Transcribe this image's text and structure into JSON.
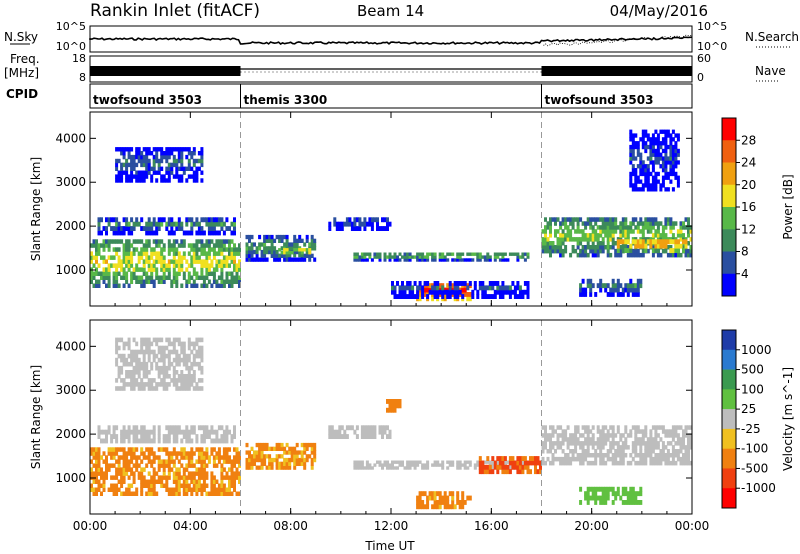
{
  "header": {
    "station": "Rankin Inlet (fitACF)",
    "beam": "Beam 14",
    "date": "04/May/2016"
  },
  "summary": {
    "left_labels": [
      "N.Sky",
      "Freq.",
      "[MHz]",
      "CPID"
    ],
    "right_labels": [
      "N.Search",
      "Nave"
    ],
    "nsky_ticks": [
      "10^5",
      "10^0"
    ],
    "freq_ticks": [
      "18",
      "8"
    ],
    "nsearch_ticks": [
      "10^5",
      "10^0"
    ],
    "nave_ticks": [
      "60",
      "0"
    ],
    "cpid_segments": [
      {
        "label": "twofsound 3503",
        "start_hour": 0,
        "end_hour": 6
      },
      {
        "label": "themis 3300",
        "start_hour": 6,
        "end_hour": 18
      },
      {
        "label": "twofsound 3503",
        "start_hour": 18,
        "end_hour": 24
      }
    ]
  },
  "colors": {
    "power_scale": [
      "#0000ff",
      "#2a4fa0",
      "#3c8a5a",
      "#58b848",
      "#f0e020",
      "#f0a010",
      "#f06010",
      "#ff0000"
    ],
    "velocity_scale": [
      "#1f3ca8",
      "#2a7ad0",
      "#3a9a50",
      "#60c040",
      "#bdbdbd",
      "#f0c020",
      "#f08010",
      "#f04010",
      "#ff0000"
    ]
  },
  "chart_data": [
    {
      "type": "heatmap",
      "title": "",
      "xlabel": "Time UT",
      "ylabel": "Slant Range [km]",
      "x_ticks": [
        "00:00",
        "04:00",
        "08:00",
        "12:00",
        "16:00",
        "20:00",
        "00:00"
      ],
      "y_ticks": [
        "1000",
        "2000",
        "3000",
        "4000"
      ],
      "xlim": [
        0,
        24
      ],
      "ylim": [
        180,
        4600
      ],
      "colorbar_label": "Power [dB]",
      "colorbar_ticks": [
        "4",
        "8",
        "12",
        "16",
        "20",
        "24",
        "28"
      ],
      "colorbar_range": [
        0,
        32
      ],
      "regions": [
        {
          "t": [
            0.0,
            6.0
          ],
          "r": [
            600,
            1700
          ],
          "v": 18
        },
        {
          "t": [
            0.3,
            5.8
          ],
          "r": [
            1800,
            2200
          ],
          "v": 10
        },
        {
          "t": [
            1.0,
            4.5
          ],
          "r": [
            3000,
            3800
          ],
          "v": 8
        },
        {
          "t": [
            6.2,
            9.0
          ],
          "r": [
            1200,
            1800
          ],
          "v": 12
        },
        {
          "t": [
            7.5,
            8.8
          ],
          "r": [
            1300,
            1500
          ],
          "v": 20
        },
        {
          "t": [
            9.5,
            12.0
          ],
          "r": [
            1900,
            2200
          ],
          "v": 8
        },
        {
          "t": [
            10.5,
            17.5
          ],
          "r": [
            1200,
            1400
          ],
          "v": 14
        },
        {
          "t": [
            13.0,
            15.2
          ],
          "r": [
            300,
            700
          ],
          "v": 30
        },
        {
          "t": [
            12.0,
            17.5
          ],
          "r": [
            350,
            750
          ],
          "v": 6
        },
        {
          "t": [
            18.0,
            24.0
          ],
          "r": [
            1300,
            2200
          ],
          "v": 16
        },
        {
          "t": [
            21.0,
            23.8
          ],
          "r": [
            1400,
            1700
          ],
          "v": 24
        },
        {
          "t": [
            19.5,
            22.0
          ],
          "r": [
            400,
            800
          ],
          "v": 10
        },
        {
          "t": [
            21.5,
            23.5
          ],
          "r": [
            2800,
            4200
          ],
          "v": 6
        }
      ]
    },
    {
      "type": "heatmap",
      "title": "",
      "xlabel": "Time UT",
      "ylabel": "Slant Range [km]",
      "x_ticks": [
        "00:00",
        "04:00",
        "08:00",
        "12:00",
        "16:00",
        "20:00",
        "00:00"
      ],
      "y_ticks": [
        "1000",
        "2000",
        "3000",
        "4000"
      ],
      "xlim": [
        0,
        24
      ],
      "ylim": [
        180,
        4600
      ],
      "colorbar_label": "Velocity [m s^-1]",
      "colorbar_ticks": [
        "1000",
        "500",
        "100",
        "25",
        "-25",
        "-100",
        "-500",
        "-1000"
      ],
      "regions": [
        {
          "t": [
            0.0,
            6.0
          ],
          "r": [
            600,
            1700
          ],
          "v": -150
        },
        {
          "t": [
            0.3,
            5.8
          ],
          "r": [
            1800,
            2200
          ],
          "v": 0
        },
        {
          "t": [
            1.0,
            4.5
          ],
          "r": [
            3000,
            4200
          ],
          "v": 0
        },
        {
          "t": [
            6.2,
            9.0
          ],
          "r": [
            1200,
            1800
          ],
          "v": -120
        },
        {
          "t": [
            9.5,
            12.0
          ],
          "r": [
            1900,
            2200
          ],
          "v": 0
        },
        {
          "t": [
            10.5,
            17.5
          ],
          "r": [
            1200,
            1400
          ],
          "v": 0
        },
        {
          "t": [
            13.0,
            15.2
          ],
          "r": [
            300,
            700
          ],
          "v": -150
        },
        {
          "t": [
            15.5,
            18.0
          ],
          "r": [
            1100,
            1500
          ],
          "v": -600
        },
        {
          "t": [
            18.0,
            24.0
          ],
          "r": [
            1300,
            2200
          ],
          "v": 0
        },
        {
          "t": [
            19.5,
            22.0
          ],
          "r": [
            400,
            800
          ],
          "v": 60
        },
        {
          "t": [
            11.8,
            12.4
          ],
          "r": [
            2500,
            2800
          ],
          "v": -200
        }
      ]
    }
  ]
}
